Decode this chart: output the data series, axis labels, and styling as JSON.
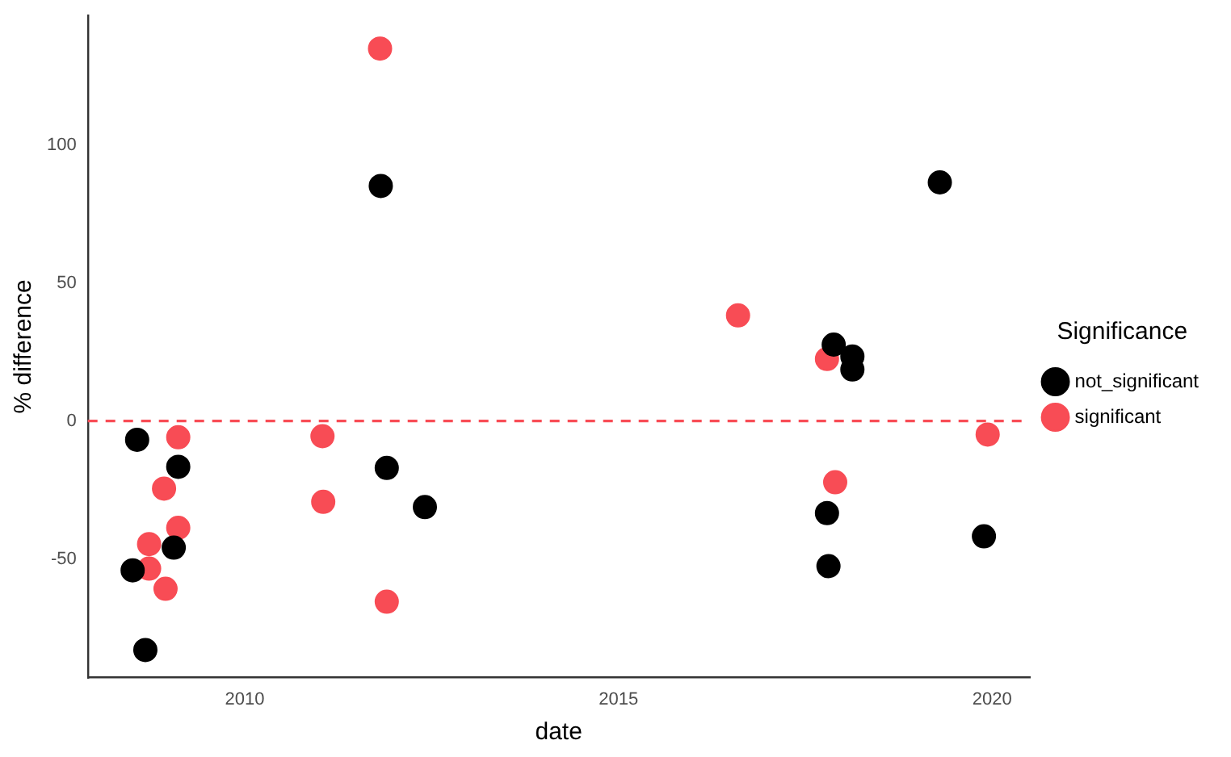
{
  "chart_data": {
    "type": "scatter",
    "xlabel": "date",
    "ylabel": "% difference",
    "legend_title": "Significance",
    "legend": "right",
    "grid": false,
    "marker": "circle",
    "xlim": [
      2007.9,
      2020.5
    ],
    "xticks": [
      2010,
      2015,
      2020
    ],
    "ylim": [
      -93,
      147
    ],
    "yticks": [
      -50,
      0,
      50,
      100
    ],
    "ref_lines": [
      {
        "axis": "y",
        "value": 0,
        "color": "#f84c55",
        "line_style": "dashed"
      }
    ],
    "series": [
      {
        "name": "not_significant",
        "color": "#000000",
        "x": [
          2008.56,
          2009.11,
          2009.05,
          2008.5,
          2008.67,
          2011.9,
          2011.82,
          2012.41,
          2017.88,
          2018.13,
          2018.13,
          2017.79,
          2017.81,
          2019.89,
          2019.3
        ],
        "values": [
          -6.8,
          -16.6,
          -45.9,
          -54.1,
          -83,
          -17,
          85.2,
          -31.2,
          27.7,
          23.4,
          18.7,
          -33.4,
          -52.6,
          -41.8,
          86.5
        ]
      },
      {
        "name": "significant",
        "color": "#f84c55",
        "x": [
          2009.11,
          2008.92,
          2009.11,
          2008.72,
          2008.72,
          2008.94,
          2011.04,
          2011.05,
          2011.9,
          2011.81,
          2016.6,
          2017.79,
          2019.94,
          2017.9
        ],
        "values": [
          -5.9,
          -24.5,
          -38.7,
          -44.6,
          -53.5,
          -60.8,
          -5.5,
          -29.3,
          -65.5,
          135,
          38.3,
          22.5,
          -4.9,
          -22.2
        ]
      }
    ]
  }
}
